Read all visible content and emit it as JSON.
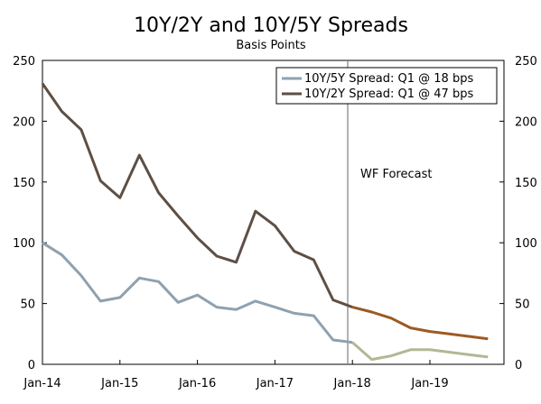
{
  "chart_data": {
    "type": "line",
    "title": "10Y/2Y and 10Y/5Y Spreads",
    "subtitle": "Basis Points",
    "ylim": [
      0,
      250
    ],
    "y_ticks": [
      "0",
      "50",
      "100",
      "150",
      "200",
      "250"
    ],
    "x_ticks": [
      "Jan-14",
      "Jan-15",
      "Jan-16",
      "Jan-17",
      "Jan-18",
      "Jan-19"
    ],
    "x_tick_dates": [
      "2014-01",
      "2015-01",
      "2016-01",
      "2017-01",
      "2018-01",
      "2019-01"
    ],
    "xlim": [
      "2014-01",
      "2019-12"
    ],
    "forecast_label": "WF Forecast",
    "forecast_start": "2018-01",
    "legend_position": "top-right",
    "grid": false,
    "series": [
      {
        "name": "10Y/5Y Spread: Q1 @ 18 bps",
        "color": "#8fa1b0",
        "forecast_color": "#b1b894",
        "x": [
          "2014-01",
          "2014-04",
          "2014-07",
          "2014-10",
          "2015-01",
          "2015-04",
          "2015-07",
          "2015-10",
          "2016-01",
          "2016-04",
          "2016-07",
          "2016-10",
          "2017-01",
          "2017-04",
          "2017-07",
          "2017-10",
          "2018-01",
          "2018-04",
          "2018-07",
          "2018-10",
          "2019-01",
          "2019-04",
          "2019-07",
          "2019-10"
        ],
        "values": [
          100,
          90,
          73,
          52,
          55,
          71,
          68,
          51,
          57,
          47,
          45,
          52,
          47,
          42,
          40,
          20,
          18,
          4,
          7,
          12,
          12,
          10,
          8,
          6
        ]
      },
      {
        "name": "10Y/2Y Spread: Q1 @ 47 bps",
        "color": "#5e4f45",
        "forecast_color": "#9c5a22",
        "x": [
          "2014-01",
          "2014-04",
          "2014-07",
          "2014-10",
          "2015-01",
          "2015-04",
          "2015-07",
          "2015-10",
          "2016-01",
          "2016-04",
          "2016-07",
          "2016-10",
          "2017-01",
          "2017-04",
          "2017-07",
          "2017-10",
          "2018-01",
          "2018-04",
          "2018-07",
          "2018-10",
          "2019-01",
          "2019-04",
          "2019-07",
          "2019-10"
        ],
        "values": [
          231,
          208,
          193,
          151,
          137,
          172,
          141,
          122,
          104,
          89,
          84,
          126,
          114,
          93,
          86,
          53,
          47,
          43,
          38,
          30,
          27,
          25,
          23,
          21
        ]
      }
    ]
  }
}
